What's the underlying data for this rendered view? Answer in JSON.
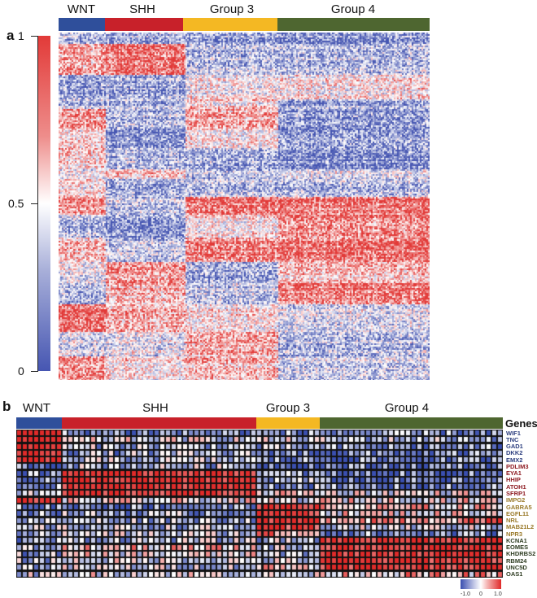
{
  "chart_data": [
    {
      "panel": "a",
      "type": "heatmap",
      "title": "",
      "column_groups": [
        {
          "name": "WNT",
          "color": "#2f4f9b",
          "fraction": 0.125
        },
        {
          "name": "SHH",
          "color": "#c8212a",
          "fraction": 0.215
        },
        {
          "name": "Group 3",
          "color": "#f4b823",
          "fraction": 0.25
        },
        {
          "name": "Group 4",
          "color": "#4e6630",
          "fraction": 0.41
        }
      ],
      "colorbar": {
        "min": 0,
        "max": 1,
        "ticks": [
          "1",
          "0.5",
          "0"
        ],
        "low_color": "#4656b2",
        "mid_color": "#ffffff",
        "high_color": "#e23a38"
      },
      "row_blocks_description": "Correlation-style matrix with alternating red/blue horizontal bands differing by subgroup",
      "row_bands": [
        {
          "span": [
            0.0,
            0.03
          ],
          "levels": [
            0.3,
            0.3,
            0.25,
            0.2
          ]
        },
        {
          "span": [
            0.03,
            0.12
          ],
          "levels": [
            0.7,
            0.85,
            0.3,
            0.3
          ]
        },
        {
          "span": [
            0.12,
            0.19
          ],
          "levels": [
            0.2,
            0.25,
            0.5,
            0.55
          ]
        },
        {
          "span": [
            0.19,
            0.22
          ],
          "levels": [
            0.3,
            0.3,
            0.6,
            0.25
          ]
        },
        {
          "span": [
            0.22,
            0.28
          ],
          "levels": [
            0.75,
            0.3,
            0.7,
            0.2
          ]
        },
        {
          "span": [
            0.28,
            0.33
          ],
          "levels": [
            0.65,
            0.25,
            0.6,
            0.3
          ]
        },
        {
          "span": [
            0.33,
            0.39
          ],
          "levels": [
            0.6,
            0.3,
            0.25,
            0.15
          ]
        },
        {
          "span": [
            0.39,
            0.42
          ],
          "levels": [
            0.45,
            0.6,
            0.3,
            0.4
          ]
        },
        {
          "span": [
            0.42,
            0.47
          ],
          "levels": [
            0.55,
            0.25,
            0.3,
            0.3
          ]
        },
        {
          "span": [
            0.47,
            0.52
          ],
          "levels": [
            0.75,
            0.35,
            0.85,
            0.85
          ]
        },
        {
          "span": [
            0.52,
            0.59
          ],
          "levels": [
            0.3,
            0.2,
            0.55,
            0.8
          ]
        },
        {
          "span": [
            0.59,
            0.66
          ],
          "levels": [
            0.65,
            0.35,
            0.8,
            0.85
          ]
        },
        {
          "span": [
            0.66,
            0.72
          ],
          "levels": [
            0.45,
            0.75,
            0.25,
            0.65
          ]
        },
        {
          "span": [
            0.72,
            0.78
          ],
          "levels": [
            0.3,
            0.7,
            0.35,
            0.85
          ]
        },
        {
          "span": [
            0.78,
            0.86
          ],
          "levels": [
            0.85,
            0.7,
            0.55,
            0.4
          ]
        },
        {
          "span": [
            0.86,
            0.93
          ],
          "levels": [
            0.4,
            0.45,
            0.7,
            0.3
          ]
        },
        {
          "span": [
            0.93,
            1.0
          ],
          "levels": [
            0.75,
            0.55,
            0.65,
            0.35
          ]
        }
      ]
    },
    {
      "panel": "b",
      "type": "heatmap",
      "column_groups": [
        {
          "name": "WNT",
          "color": "#2f4f9b",
          "columns": 8
        },
        {
          "name": "SHH",
          "color": "#c8212a",
          "columns": 34
        },
        {
          "name": "Group 3",
          "color": "#f4b823",
          "columns": 11
        },
        {
          "name": "Group 4",
          "color": "#4e6630",
          "columns": 32
        }
      ],
      "rows_title": "Genes",
      "genes": [
        {
          "name": "WIF1",
          "group": "WNT",
          "color": "#2b3d7e",
          "levels": [
            1.0,
            -0.6,
            -0.6,
            -0.6
          ]
        },
        {
          "name": "TNC",
          "group": "WNT",
          "color": "#2b3d7e",
          "levels": [
            1.0,
            -0.1,
            -0.2,
            -0.3
          ]
        },
        {
          "name": "GAD1",
          "group": "WNT",
          "color": "#2b3d7e",
          "levels": [
            1.0,
            -0.3,
            -0.5,
            -0.6
          ]
        },
        {
          "name": "DKK2",
          "group": "WNT",
          "color": "#2b3d7e",
          "levels": [
            1.0,
            -0.4,
            -0.6,
            -0.7
          ]
        },
        {
          "name": "EMX2",
          "group": "WNT",
          "color": "#2b3d7e",
          "levels": [
            1.0,
            -0.3,
            -0.6,
            -0.7
          ]
        },
        {
          "name": "PDLIM3",
          "group": "SHH",
          "color": "#8e1b22",
          "levels": [
            -0.7,
            -0.3,
            -0.7,
            -0.7
          ]
        },
        {
          "name": "EYA1",
          "group": "SHH",
          "color": "#8e1b22",
          "levels": [
            -0.6,
            0.95,
            -0.5,
            -0.8
          ]
        },
        {
          "name": "HHIP",
          "group": "SHH",
          "color": "#8e1b22",
          "levels": [
            -0.5,
            0.9,
            -0.4,
            -0.8
          ]
        },
        {
          "name": "ATOH1",
          "group": "SHH",
          "color": "#8e1b22",
          "levels": [
            -0.6,
            0.95,
            -0.4,
            -0.7
          ]
        },
        {
          "name": "SFRP1",
          "group": "SHH",
          "color": "#8e1b22",
          "levels": [
            -0.2,
            0.9,
            0.2,
            0.0
          ]
        },
        {
          "name": "IMPG2",
          "group": "Group 3",
          "color": "#9a7a2a",
          "levels": [
            0.9,
            0.0,
            -0.1,
            0.1
          ]
        },
        {
          "name": "GABRA5",
          "group": "Group 3",
          "color": "#9a7a2a",
          "levels": [
            -0.6,
            -0.6,
            0.95,
            0.2
          ]
        },
        {
          "name": "EGFL11",
          "group": "Group 3",
          "color": "#9a7a2a",
          "levels": [
            -0.4,
            -0.4,
            0.9,
            0.1
          ]
        },
        {
          "name": "NRL",
          "group": "Group 3",
          "color": "#9a7a2a",
          "levels": [
            -0.4,
            -0.3,
            0.9,
            0.6
          ]
        },
        {
          "name": "MAB21L2",
          "group": "Group 3",
          "color": "#9a7a2a",
          "levels": [
            -0.3,
            -0.3,
            0.8,
            -0.2
          ]
        },
        {
          "name": "NPR3",
          "group": "Group 3",
          "color": "#9a7a2a",
          "levels": [
            -0.4,
            -0.2,
            0.5,
            -0.6
          ]
        },
        {
          "name": "KCNA1",
          "group": "Group 4",
          "color": "#2f3d22",
          "levels": [
            -0.5,
            -0.3,
            -0.3,
            0.95
          ]
        },
        {
          "name": "EOMES",
          "group": "Group 4",
          "color": "#2f3d22",
          "levels": [
            -0.4,
            0.2,
            -0.2,
            0.9
          ]
        },
        {
          "name": "KHDRBS2",
          "group": "Group 4",
          "color": "#2f3d22",
          "levels": [
            -0.4,
            0.0,
            -0.3,
            0.95
          ]
        },
        {
          "name": "RBM24",
          "group": "Group 4",
          "color": "#2f3d22",
          "levels": [
            -0.3,
            -0.1,
            -0.2,
            0.9
          ]
        },
        {
          "name": "UNC5D",
          "group": "Group 4",
          "color": "#2f3d22",
          "levels": [
            -0.3,
            -0.2,
            0.3,
            0.9
          ]
        },
        {
          "name": "OAS1",
          "group": "Group 4",
          "color": "#2f3d22",
          "levels": [
            -0.2,
            0.0,
            -0.2,
            0.3
          ]
        }
      ],
      "colorbar": {
        "min": -1.0,
        "max": 1.0,
        "ticks": [
          "-1.0",
          "0",
          "1.0"
        ],
        "low_color": "#3a4fb0",
        "mid_color": "#ffffff",
        "high_color": "#e02a29"
      }
    }
  ],
  "labels": {
    "panel_a": "a",
    "panel_b": "b",
    "genes_title": "Genes",
    "groups": [
      "WNT",
      "SHH",
      "Group 3",
      "Group 4"
    ],
    "colorbar_a_ticks": [
      "1",
      "0.5",
      "0"
    ],
    "colorbar_b_ticks": [
      "-1.0",
      "0",
      "1.0"
    ]
  }
}
